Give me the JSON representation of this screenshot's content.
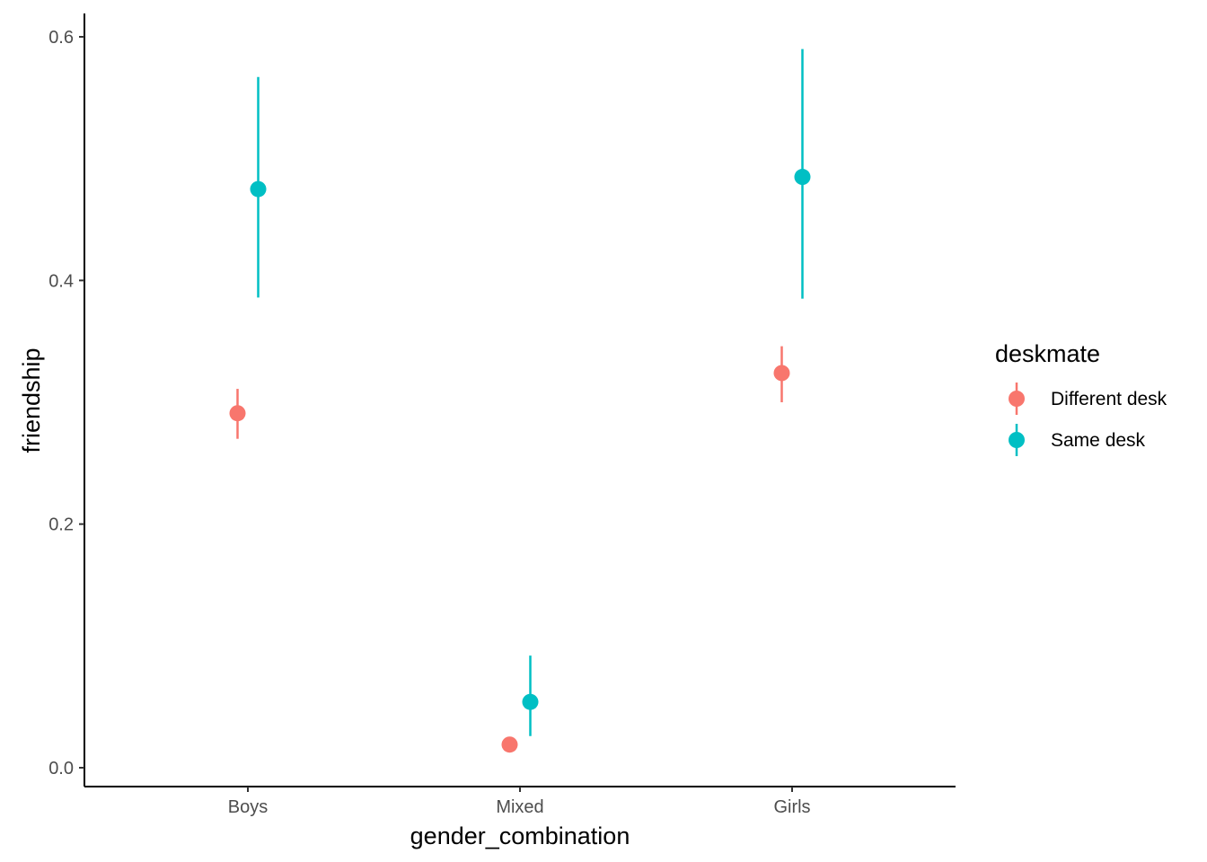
{
  "chart_data": {
    "type": "scatter",
    "subtype": "pointrange",
    "xlabel": "gender_combination",
    "ylabel": "friendship",
    "categories": [
      "Boys",
      "Mixed",
      "Girls"
    ],
    "ylim": [
      -0.015,
      0.62
    ],
    "yticks": [
      0.0,
      0.2,
      0.4,
      0.6
    ],
    "ytick_labels": [
      "0.0",
      "0.2",
      "0.4",
      "0.6"
    ],
    "grid": false,
    "legend": {
      "title": "deskmate",
      "position": "right"
    },
    "series": [
      {
        "name": "Different desk",
        "color": "#F8766D",
        "values": [
          0.291,
          0.019,
          0.324
        ],
        "lower": [
          0.27,
          null,
          0.3
        ],
        "upper": [
          0.311,
          null,
          0.346
        ]
      },
      {
        "name": "Same desk",
        "color": "#00BFC4",
        "values": [
          0.475,
          0.054,
          0.485
        ],
        "lower": [
          0.386,
          0.026,
          0.385
        ],
        "upper": [
          0.567,
          0.092,
          0.59
        ]
      }
    ]
  }
}
